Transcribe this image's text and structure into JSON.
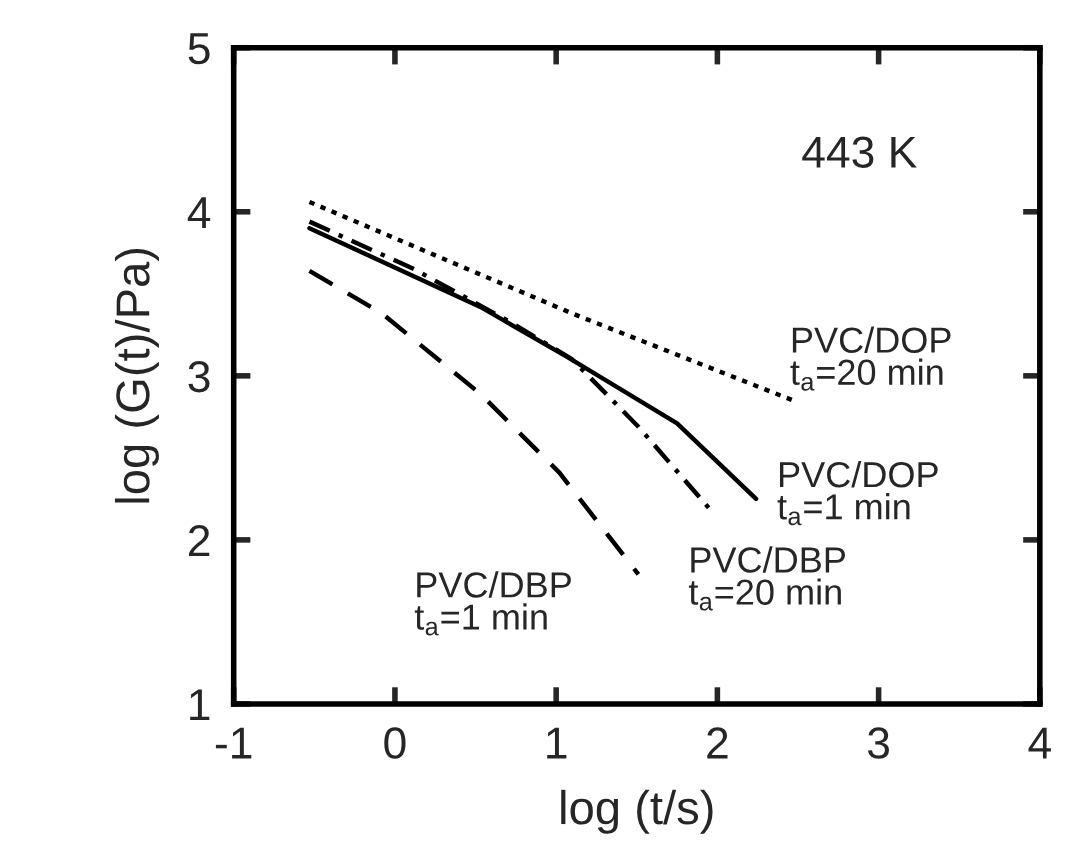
{
  "chart_data": {
    "type": "line",
    "xlabel": "log (t/s)",
    "ylabel": "log (G(t)/Pa)",
    "xlim": [
      -1,
      4
    ],
    "ylim": [
      1,
      5
    ],
    "xticks": [
      -1,
      0,
      1,
      2,
      3,
      4
    ],
    "yticks": [
      1,
      2,
      3,
      4,
      5
    ],
    "grid": false,
    "legend": false,
    "marker": "none",
    "series": [
      {
        "color": "#000000",
        "line_style": "dotted",
        "x": [
          -0.53,
          1.1,
          2.47
        ],
        "values": [
          4.06,
          3.38,
          2.85
        ]
      },
      {
        "color": "#000000",
        "line_style": "solid",
        "x": [
          -0.53,
          0.53,
          1.06,
          1.75,
          2.24
        ],
        "values": [
          3.9,
          3.42,
          3.12,
          2.71,
          2.25
        ]
      },
      {
        "color": "#000000",
        "line_style": "dashdot",
        "x": [
          -0.53,
          0.12,
          0.73,
          1.1,
          1.51,
          1.96
        ],
        "values": [
          3.94,
          3.65,
          3.32,
          3.1,
          2.69,
          2.18
        ]
      },
      {
        "color": "#000000",
        "line_style": "dashed",
        "x": [
          -0.53,
          -0.08,
          0.53,
          1.02,
          1.51
        ],
        "values": [
          3.64,
          3.38,
          2.89,
          2.41,
          1.79
        ]
      }
    ],
    "annotations": [
      "443 K",
      "PVC/DOP\nt$_{a}$=20 min",
      "PVC/DOP\nt$_{a}$=1 min",
      "PVC/DBP\nt$_{a}$=20 min",
      "PVC/DBP\nt$_{a}$=1 min"
    ]
  }
}
